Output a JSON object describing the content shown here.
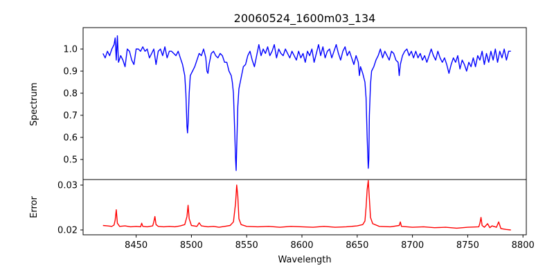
{
  "chart_data": [
    {
      "type": "line",
      "title": "20060524_1600m03_134",
      "xlabel": "",
      "ylabel": "Spectrum",
      "xlim": [
        8402,
        8803
      ],
      "ylim": [
        0.409,
        1.097
      ],
      "yticks": [
        0.5,
        0.6,
        0.7,
        0.8,
        0.9,
        1.0
      ],
      "color": "#0000ff",
      "series": [
        {
          "name": "Spectrum",
          "x": [
            8420,
            8422,
            8424,
            8426,
            8428,
            8430,
            8431,
            8432,
            8433,
            8434,
            8436,
            8438,
            8440,
            8442,
            8444,
            8446,
            8448,
            8450,
            8452,
            8454,
            8456,
            8458,
            8460,
            8462,
            8464,
            8466,
            8468,
            8470,
            8472,
            8474,
            8476,
            8478,
            8480,
            8482,
            8484,
            8486,
            8488,
            8490,
            8492,
            8494,
            8495,
            8496,
            8496.5,
            8497,
            8498,
            8499,
            8501,
            8503,
            8505,
            8507,
            8509,
            8511,
            8513,
            8514,
            8515,
            8516,
            8518,
            8520,
            8522,
            8524,
            8526,
            8528,
            8530,
            8532,
            8534,
            8536,
            8537,
            8538,
            8539,
            8540,
            8540.5,
            8541,
            8542,
            8543,
            8545,
            8547,
            8549,
            8551,
            8553,
            8555,
            8557,
            8559,
            8561,
            8563,
            8565,
            8567,
            8569,
            8571,
            8573,
            8575,
            8577,
            8579,
            8581,
            8583,
            8585,
            8587,
            8589,
            8591,
            8593,
            8595,
            8597,
            8599,
            8601,
            8603,
            8605,
            8607,
            8609,
            8611,
            8613,
            8615,
            8617,
            8619,
            8621,
            8623,
            8625,
            8627,
            8629,
            8631,
            8633,
            8635,
            8637,
            8639,
            8641,
            8643,
            8645,
            8647,
            8649,
            8651,
            8652,
            8653,
            8655,
            8657,
            8658,
            8659,
            8660,
            8660.5,
            8661,
            8662,
            8663,
            8665,
            8667,
            8669,
            8671,
            8673,
            8675,
            8677,
            8679,
            8681,
            8683,
            8685,
            8687,
            8688,
            8689,
            8691,
            8693,
            8695,
            8697,
            8699,
            8701,
            8703,
            8705,
            8707,
            8709,
            8711,
            8713,
            8715,
            8717,
            8719,
            8721,
            8723,
            8725,
            8727,
            8729,
            8731,
            8733,
            8735,
            8737,
            8739,
            8741,
            8743,
            8745,
            8747,
            8749,
            8751,
            8753,
            8755,
            8757,
            8759,
            8761,
            8763,
            8765,
            8767,
            8769,
            8771,
            8773,
            8775,
            8777,
            8779,
            8781,
            8783,
            8785,
            8787,
            8789
          ],
          "y": [
            0.98,
            0.96,
            0.99,
            0.97,
            1.0,
            1.02,
            1.05,
            0.95,
            1.06,
            0.94,
            0.97,
            0.95,
            0.92,
            1.0,
            0.99,
            0.95,
            0.93,
            1.0,
            1.0,
            0.99,
            1.01,
            0.99,
            1.0,
            0.96,
            0.98,
            1.0,
            0.93,
            0.99,
            1.0,
            0.97,
            1.01,
            0.96,
            0.99,
            0.99,
            0.98,
            0.97,
            0.99,
            0.96,
            0.93,
            0.88,
            0.8,
            0.65,
            0.62,
            0.66,
            0.8,
            0.88,
            0.9,
            0.92,
            0.95,
            0.98,
            0.97,
            1.0,
            0.96,
            0.9,
            0.89,
            0.93,
            0.98,
            0.99,
            0.97,
            0.96,
            0.98,
            0.97,
            0.94,
            0.94,
            0.9,
            0.88,
            0.85,
            0.8,
            0.65,
            0.5,
            0.45,
            0.55,
            0.74,
            0.82,
            0.87,
            0.92,
            0.93,
            0.97,
            0.99,
            0.95,
            0.92,
            0.97,
            1.02,
            0.97,
            1.0,
            0.98,
            1.01,
            0.97,
            0.99,
            1.02,
            0.96,
            1.0,
            0.98,
            0.97,
            1.0,
            0.98,
            0.96,
            0.99,
            0.97,
            0.95,
            0.99,
            0.96,
            0.98,
            0.94,
            0.99,
            0.97,
            1.0,
            0.94,
            0.98,
            1.02,
            0.97,
            1.01,
            0.96,
            0.99,
            1.0,
            0.96,
            0.99,
            1.02,
            0.98,
            0.95,
            0.99,
            1.01,
            0.97,
            0.99,
            0.96,
            0.93,
            0.97,
            0.94,
            0.88,
            0.92,
            0.89,
            0.85,
            0.78,
            0.6,
            0.46,
            0.5,
            0.7,
            0.84,
            0.9,
            0.92,
            0.95,
            0.97,
            1.0,
            0.96,
            0.99,
            0.97,
            0.95,
            0.99,
            0.98,
            0.95,
            0.94,
            0.88,
            0.93,
            0.97,
            0.99,
            1.0,
            0.97,
            0.99,
            0.96,
            0.99,
            0.96,
            0.98,
            0.95,
            0.97,
            0.94,
            0.97,
            1.0,
            0.97,
            0.95,
            0.99,
            0.96,
            0.94,
            0.96,
            0.93,
            0.89,
            0.93,
            0.96,
            0.94,
            0.97,
            0.91,
            0.95,
            0.93,
            0.9,
            0.94,
            0.92,
            0.96,
            0.92,
            0.97,
            0.95,
            0.99,
            0.93,
            0.98,
            0.94,
            0.99,
            0.95,
            1.0,
            0.94,
            0.99,
            0.96,
            1.0,
            0.95,
            0.99,
            0.99
          ]
        }
      ]
    },
    {
      "type": "line",
      "xlabel": "Wavelength",
      "ylabel": "Error",
      "xlim": [
        8402,
        8803
      ],
      "ylim": [
        0.01892,
        0.03123
      ],
      "xticks": [
        8450,
        8500,
        8550,
        8600,
        8650,
        8700,
        8750,
        8800
      ],
      "yticks": [
        0.02,
        0.03
      ],
      "color": "#ff0000",
      "series": [
        {
          "name": "Error",
          "x": [
            8420,
            8424,
            8428,
            8430,
            8431,
            8432,
            8433,
            8435,
            8440,
            8445,
            8450,
            8454,
            8455,
            8456,
            8460,
            8465,
            8466,
            8467,
            8468,
            8470,
            8475,
            8480,
            8485,
            8490,
            8494,
            8496,
            8497,
            8498,
            8500,
            8505,
            8507,
            8509,
            8515,
            8520,
            8525,
            8530,
            8535,
            8538,
            8540,
            8541,
            8542,
            8543,
            8545,
            8550,
            8560,
            8570,
            8580,
            8590,
            8600,
            8610,
            8620,
            8630,
            8640,
            8650,
            8655,
            8657,
            8658,
            8659,
            8660,
            8661,
            8662,
            8664,
            8670,
            8680,
            8688,
            8689,
            8690,
            8700,
            8710,
            8720,
            8730,
            8740,
            8750,
            8760,
            8761,
            8762,
            8763,
            8765,
            8768,
            8770,
            8772,
            8776,
            8778,
            8780,
            8785,
            8789
          ],
          "y": [
            0.021,
            0.0209,
            0.0208,
            0.0211,
            0.0222,
            0.0245,
            0.0215,
            0.0208,
            0.0209,
            0.0207,
            0.0208,
            0.0207,
            0.0215,
            0.0208,
            0.0207,
            0.0209,
            0.0218,
            0.023,
            0.0212,
            0.0208,
            0.0207,
            0.0208,
            0.0207,
            0.0209,
            0.0212,
            0.023,
            0.0255,
            0.0225,
            0.021,
            0.0208,
            0.0216,
            0.0209,
            0.0207,
            0.0208,
            0.0206,
            0.0208,
            0.021,
            0.0218,
            0.026,
            0.03,
            0.0275,
            0.0225,
            0.0212,
            0.0208,
            0.0207,
            0.0208,
            0.0206,
            0.0208,
            0.0207,
            0.0206,
            0.0208,
            0.0206,
            0.0207,
            0.0209,
            0.0212,
            0.022,
            0.025,
            0.029,
            0.031,
            0.027,
            0.0228,
            0.0214,
            0.0208,
            0.0207,
            0.021,
            0.0218,
            0.0208,
            0.0206,
            0.0207,
            0.0205,
            0.0206,
            0.0204,
            0.0206,
            0.0207,
            0.0215,
            0.0228,
            0.021,
            0.0206,
            0.0214,
            0.0205,
            0.0209,
            0.0206,
            0.0218,
            0.0203,
            0.0201,
            0.02
          ]
        }
      ]
    }
  ]
}
